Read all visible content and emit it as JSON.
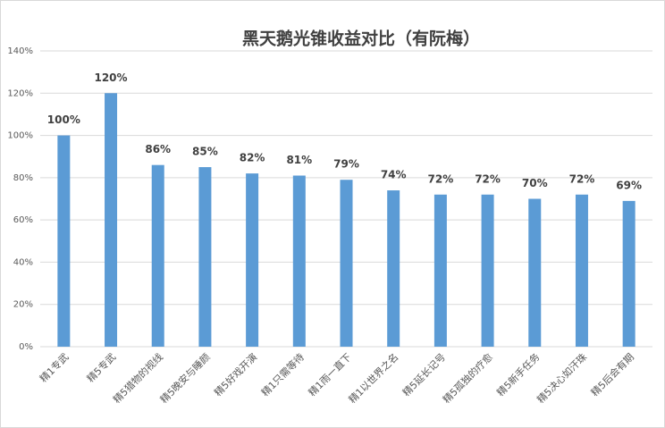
{
  "chart_data": {
    "type": "bar",
    "title": "黑天鹅光锥收益对比（有阮梅）",
    "categories": [
      "精1专武",
      "精5专武",
      "精5猎物的视线",
      "精5晚安与睡颜",
      "精5好戏开演",
      "精1只需等待",
      "精1雨一直下",
      "精1以世界之名",
      "精5延长记号",
      "精5孤独的疗愈",
      "精5新手任务",
      "精5决心如汗珠",
      "精5后会有期"
    ],
    "values": [
      100,
      120,
      86,
      85,
      82,
      81,
      79,
      74,
      72,
      72,
      70,
      72,
      69
    ],
    "value_labels": [
      "100%",
      "120%",
      "86%",
      "85%",
      "82%",
      "81%",
      "79%",
      "74%",
      "72%",
      "72%",
      "70%",
      "72%",
      "69%"
    ],
    "color": "#5b9bd5",
    "ylim": [
      0,
      140
    ],
    "yticks": [
      {
        "value": 0,
        "label": "0%"
      },
      {
        "value": 20,
        "label": "20%"
      },
      {
        "value": 40,
        "label": "40%"
      },
      {
        "value": 60,
        "label": "60%"
      },
      {
        "value": 80,
        "label": "80%"
      },
      {
        "value": 100,
        "label": "100%"
      },
      {
        "value": 120,
        "label": "120%"
      },
      {
        "value": 140,
        "label": "140%"
      }
    ],
    "grid": true
  }
}
